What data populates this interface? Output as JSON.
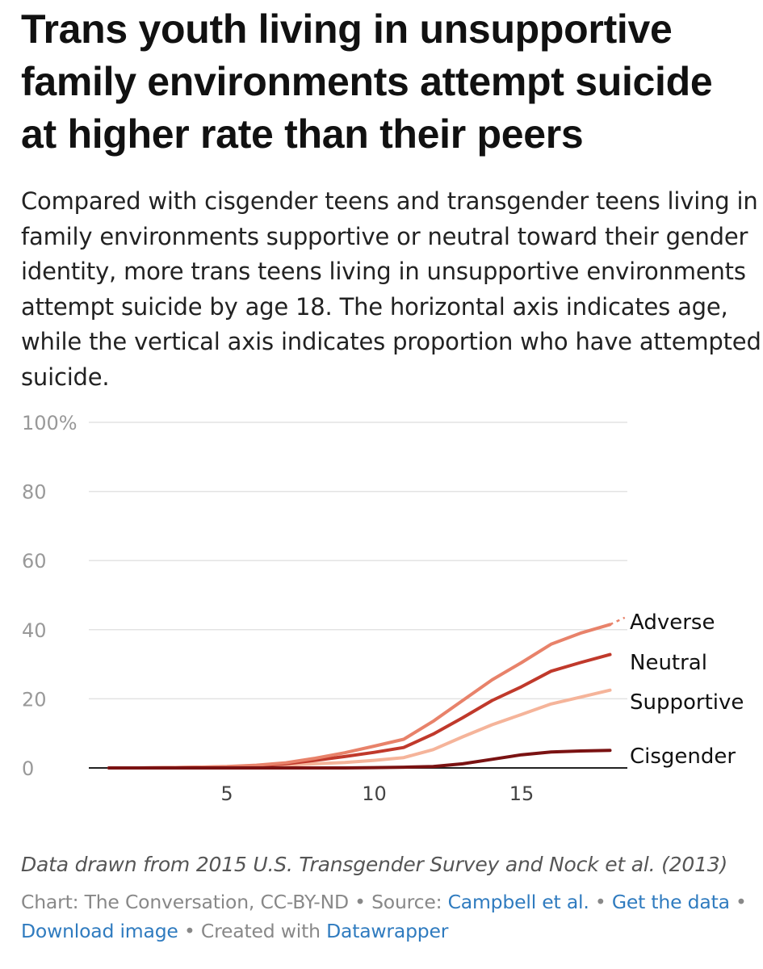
{
  "header": {
    "title": "Trans youth living in unsupportive family environments attempt suicide at higher rate than their peers",
    "subtitle": "Compared with cisgender teens and transgender teens living in family environments supportive or neutral toward their gender identity, more trans teens living in unsupportive environments attempt suicide by age 18. The horizontal axis indicates age, while the vertical axis indicates proportion who have attempted suicide."
  },
  "chart_data": {
    "type": "line",
    "title": "Trans youth living in unsupportive family environments attempt suicide at higher rate than their peers",
    "xlabel": "",
    "ylabel": "",
    "xlim": [
      0,
      18
    ],
    "ylim": [
      0,
      100
    ],
    "x_ticks": [
      5,
      10,
      15
    ],
    "x_tick_labels": [
      "5",
      "10",
      "15"
    ],
    "y_ticks": [
      0,
      20,
      40,
      60,
      80,
      100
    ],
    "y_tick_labels": [
      "0",
      "20",
      "40",
      "60",
      "80",
      "100%"
    ],
    "grid": true,
    "legend": "labels at line ends (right)",
    "x": [
      1,
      2,
      3,
      4,
      5,
      6,
      7,
      8,
      9,
      10,
      11,
      12,
      13,
      14,
      15,
      16,
      17,
      18
    ],
    "series": [
      {
        "name": "Adverse",
        "color": "#e8826a",
        "values": [
          0,
          0,
          0.1,
          0.2,
          0.4,
          0.8,
          1.5,
          2.8,
          4.4,
          6.3,
          8.3,
          13.5,
          19.5,
          25.5,
          30.5,
          35.8,
          39,
          41.5
        ],
        "extrapolated": [
          [
            18,
            41.5
          ],
          [
            18.5,
            43.5
          ]
        ]
      },
      {
        "name": "Neutral",
        "color": "#c0392b",
        "values": [
          0,
          0,
          0.1,
          0.2,
          0.3,
          0.6,
          1.2,
          2.2,
          3.3,
          4.5,
          5.9,
          9.8,
          14.5,
          19.5,
          23.5,
          28,
          30.5,
          32.8
        ]
      },
      {
        "name": "Supportive",
        "color": "#f5b49a",
        "values": [
          0,
          0,
          0,
          0.1,
          0.2,
          0.4,
          0.8,
          1.2,
          1.6,
          2.2,
          3.0,
          5.3,
          9.0,
          12.5,
          15.5,
          18.5,
          20.5,
          22.5
        ]
      },
      {
        "name": "Cisgender",
        "color": "#7a1212",
        "values": [
          0,
          0,
          0,
          0,
          0,
          0,
          0,
          0,
          0,
          0.1,
          0.2,
          0.4,
          1.2,
          2.5,
          3.8,
          4.6,
          4.9,
          5.1
        ]
      }
    ]
  },
  "notes": "Data drawn from 2015 U.S. Transgender Survey and Nock et al. (2013)",
  "footer": {
    "chart_credit": "Chart: The Conversation, CC-BY-ND",
    "sep1": " • ",
    "source_prefix": "Source: ",
    "source_link": "Campbell et al.",
    "sep2": " • ",
    "get_data": "Get the data",
    "sep3": " • ",
    "download_image": "Download image",
    "sep4": " • ",
    "created_with": "Created with ",
    "datawrapper": "Datawrapper"
  }
}
